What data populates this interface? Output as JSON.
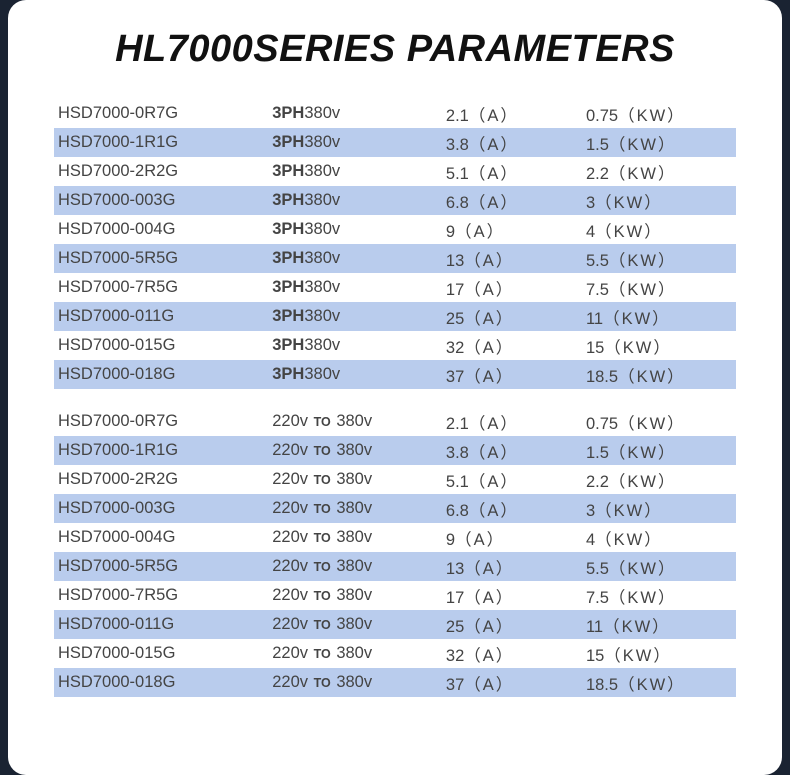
{
  "title": "HL7000SERIES PARAMETERS",
  "colors": {
    "page_bg": "#1a2332",
    "card_bg": "#ffffff",
    "row_alt_bg": "#b9cced",
    "text": "#444444",
    "title": "#111111"
  },
  "voltage_labels": {
    "three_phase_prefix": "3PH",
    "three_phase_value": "380v",
    "range_from": "220v",
    "range_to_word": "TO",
    "range_to": "380v"
  },
  "units": {
    "current": "A",
    "power": "KW"
  },
  "group1": [
    {
      "model": "HSD7000-0R7G",
      "current": "2.1",
      "power": "0.75"
    },
    {
      "model": "HSD7000-1R1G",
      "current": "3.8",
      "power": "1.5"
    },
    {
      "model": "HSD7000-2R2G",
      "current": "5.1",
      "power": "2.2"
    },
    {
      "model": "HSD7000-003G",
      "current": "6.8",
      "power": "3"
    },
    {
      "model": "HSD7000-004G",
      "current": "9",
      "power": "4"
    },
    {
      "model": "HSD7000-5R5G",
      "current": "13",
      "power": "5.5"
    },
    {
      "model": "HSD7000-7R5G",
      "current": "17",
      "power": "7.5"
    },
    {
      "model": "HSD7000-011G",
      "current": "25",
      "power": "11"
    },
    {
      "model": "HSD7000-015G",
      "current": "32",
      "power": "15"
    },
    {
      "model": "HSD7000-018G",
      "current": "37",
      "power": "18.5"
    }
  ],
  "group2": [
    {
      "model": "HSD7000-0R7G",
      "current": "2.1",
      "power": "0.75"
    },
    {
      "model": "HSD7000-1R1G",
      "current": "3.8",
      "power": "1.5"
    },
    {
      "model": "HSD7000-2R2G",
      "current": "5.1",
      "power": "2.2"
    },
    {
      "model": "HSD7000-003G",
      "current": "6.8",
      "power": "3"
    },
    {
      "model": "HSD7000-004G",
      "current": "9",
      "power": "4"
    },
    {
      "model": "HSD7000-5R5G",
      "current": "13",
      "power": "5.5"
    },
    {
      "model": "HSD7000-7R5G",
      "current": "17",
      "power": "7.5"
    },
    {
      "model": "HSD7000-011G",
      "current": "25",
      "power": "11"
    },
    {
      "model": "HSD7000-015G",
      "current": "32",
      "power": "15"
    },
    {
      "model": "HSD7000-018G",
      "current": "37",
      "power": "18.5"
    }
  ]
}
